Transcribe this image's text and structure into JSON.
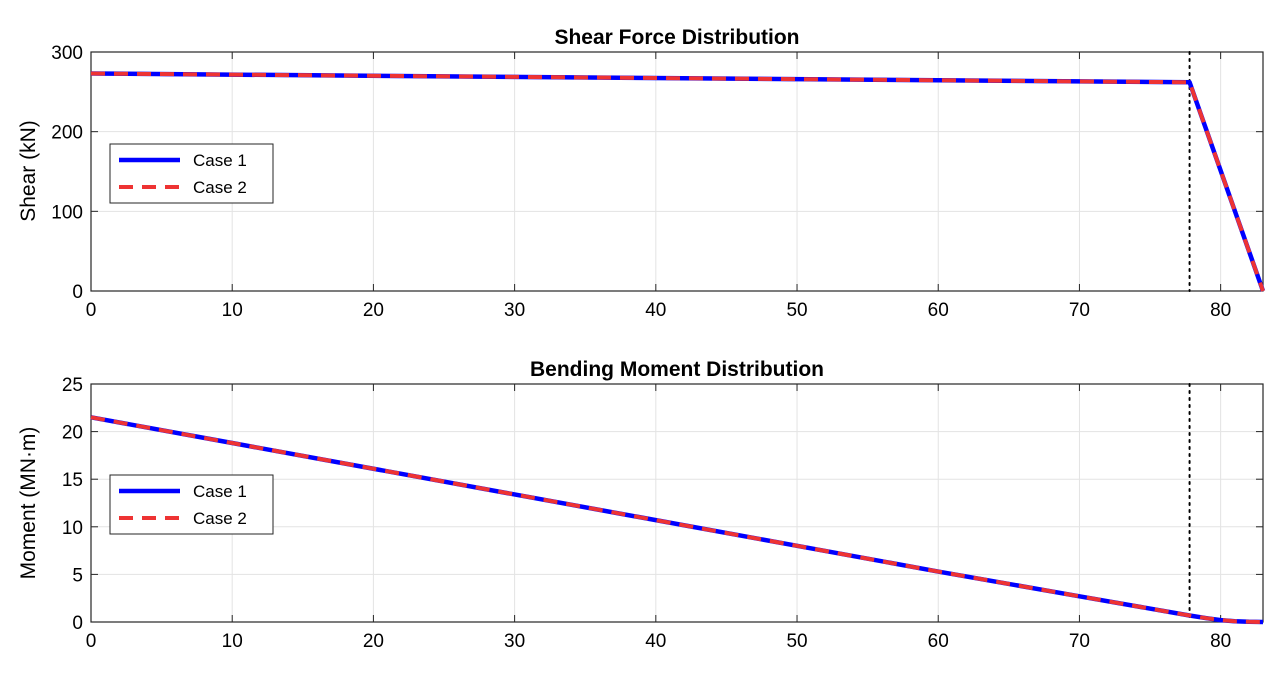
{
  "chart_data": [
    {
      "type": "line",
      "title": "Shear Force Distribution",
      "xlabel": "",
      "ylabel": "Shear (kN)",
      "xlim": [
        0,
        83
      ],
      "ylim": [
        0,
        300
      ],
      "xticks": [
        0,
        10,
        20,
        30,
        40,
        50,
        60,
        70,
        80
      ],
      "yticks": [
        0,
        100,
        200,
        300
      ],
      "grid": true,
      "legend_position": "middle-left",
      "vertical_marker": {
        "x": 77.8,
        "style": "dotted",
        "color": "#000000"
      },
      "series": [
        {
          "name": "Case 1",
          "color": "#0000ff",
          "style": "solid",
          "x": [
            0,
            77.8,
            83
          ],
          "y": [
            273,
            262,
            0
          ]
        },
        {
          "name": "Case 2",
          "color": "#ee3333",
          "style": "dashed",
          "x": [
            0,
            77.8,
            83
          ],
          "y": [
            273,
            262,
            0
          ]
        }
      ]
    },
    {
      "type": "line",
      "title": "Bending Moment Distribution",
      "xlabel": "",
      "ylabel": "Moment (MN·m)",
      "xlim": [
        0,
        83
      ],
      "ylim": [
        0,
        25
      ],
      "xticks": [
        0,
        10,
        20,
        30,
        40,
        50,
        60,
        70,
        80
      ],
      "yticks": [
        0,
        5,
        10,
        15,
        20,
        25
      ],
      "grid": true,
      "legend_position": "middle-left",
      "vertical_marker": {
        "x": 77.8,
        "style": "dotted",
        "color": "#000000"
      },
      "series": [
        {
          "name": "Case 1",
          "color": "#0000ff",
          "style": "solid",
          "x": [
            0,
            10,
            20,
            30,
            40,
            50,
            60,
            70,
            77.8,
            79,
            80,
            81,
            82,
            83
          ],
          "y": [
            21.5,
            18.8,
            16.1,
            13.4,
            10.7,
            8.0,
            5.3,
            2.7,
            0.68,
            0.4,
            0.2,
            0.08,
            0.02,
            0
          ]
        },
        {
          "name": "Case 2",
          "color": "#ee3333",
          "style": "dashed",
          "x": [
            0,
            10,
            20,
            30,
            40,
            50,
            60,
            70,
            77.8,
            79,
            80,
            81,
            82,
            83
          ],
          "y": [
            21.5,
            18.8,
            16.1,
            13.4,
            10.7,
            8.0,
            5.3,
            2.7,
            0.68,
            0.4,
            0.2,
            0.08,
            0.02,
            0
          ]
        }
      ]
    }
  ]
}
